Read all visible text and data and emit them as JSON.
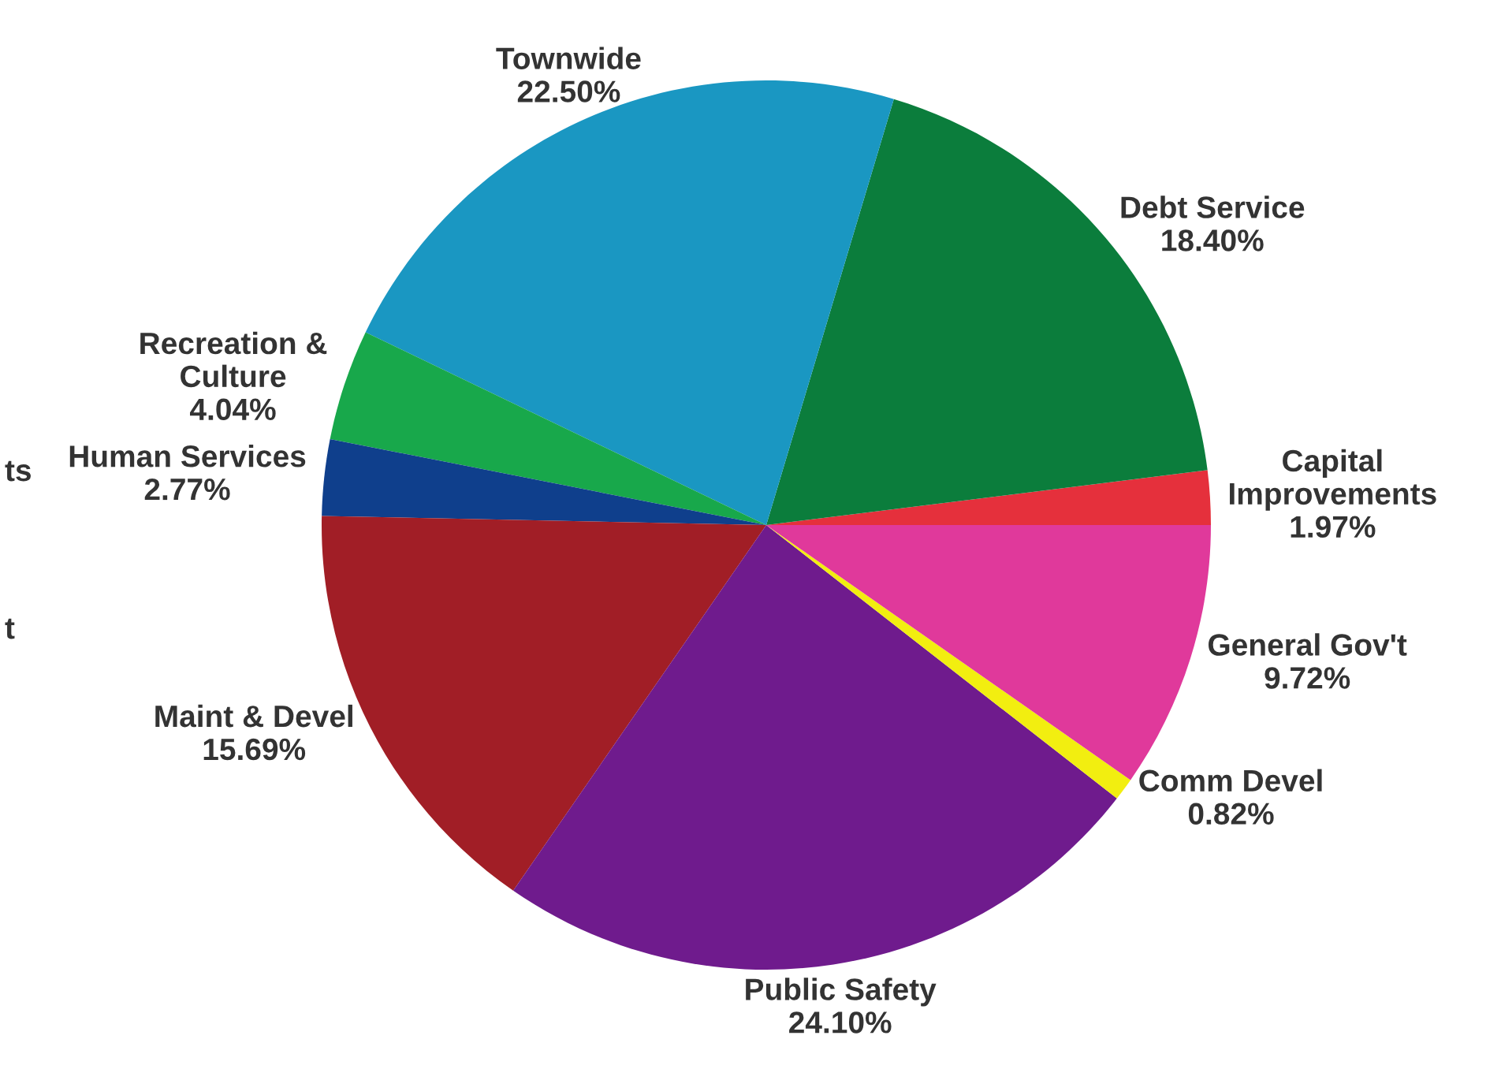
{
  "chart_data": {
    "type": "pie",
    "categories": [
      "Capital\nImprovements",
      "Debt Service",
      "Townwide",
      "Recreation &\nCulture",
      "Human Services",
      "Maint & Devel",
      "Public Safety",
      "Comm Devel",
      "General Gov't"
    ],
    "values": [
      1.97,
      18.4,
      22.5,
      4.04,
      2.77,
      15.69,
      24.1,
      0.82,
      9.72
    ],
    "colors": [
      "#e5303c",
      "#0b7d3c",
      "#1a97c2",
      "#18a84b",
      "#0f3f8c",
      "#a11e26",
      "#6f1b8d",
      "#f2ee10",
      "#e0399b"
    ],
    "value_labels": [
      "1.97%",
      "18.40%",
      "22.50%",
      "4.04%",
      "2.77%",
      "15.69%",
      "24.10%",
      "0.82%",
      "9.72%"
    ],
    "annotations": [
      "ts",
      "t"
    ]
  }
}
